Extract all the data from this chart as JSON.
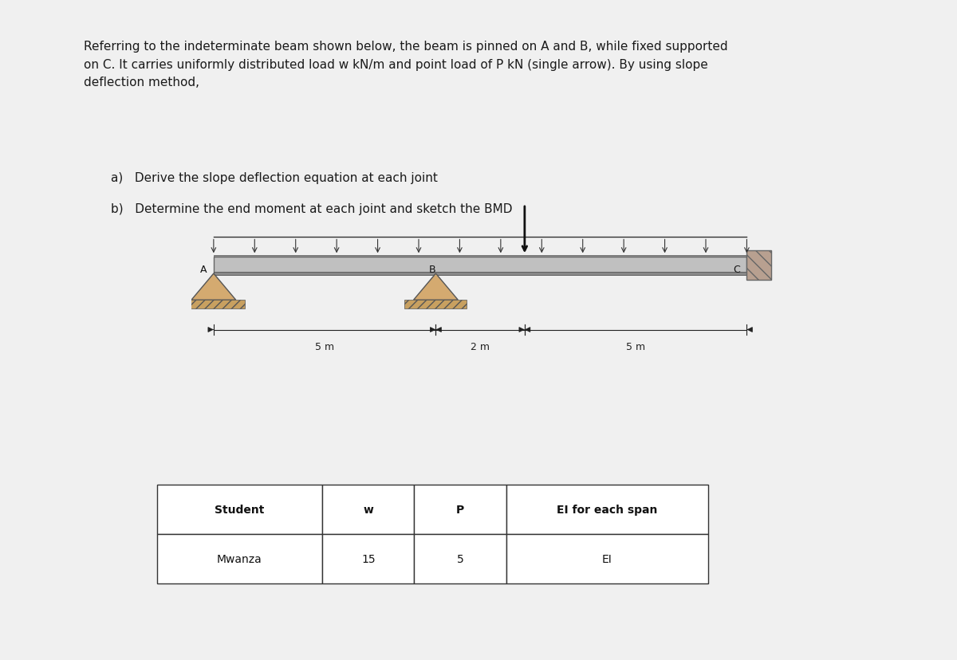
{
  "bg_color": "#f0f0f0",
  "panel1_color": "#ffffff",
  "panel2_color": "#f5f5f5",
  "title_text": "Referring to the indeterminate beam shown below, the beam is pinned on A and B, while fixed supported\non C. It carries uniformly distributed load w kN/m and point load of P kN (single arrow). By using slope\ndeflection method,",
  "item_a": "a)   Derive the slope deflection equation at each joint",
  "item_b": "b)   Determine the end moment at each joint and sketch the BMD",
  "span_AB": "5 m",
  "span_BC_left": "2 m",
  "span_BC_right": "5 m",
  "label_A": "A",
  "label_B": "B",
  "label_C": "C",
  "table_headers": [
    "Student",
    "w",
    "P",
    "EI for each span"
  ],
  "table_row": [
    "Mwanza",
    "15",
    "5",
    "EI"
  ],
  "font_size_body": 11,
  "font_size_labels": 10,
  "beam_color": "#b0b0b0",
  "beam_dark": "#888888",
  "support_color": "#c8a870",
  "wall_color": "#b0a090",
  "udl_color": "#333333",
  "dim_color": "#222222"
}
